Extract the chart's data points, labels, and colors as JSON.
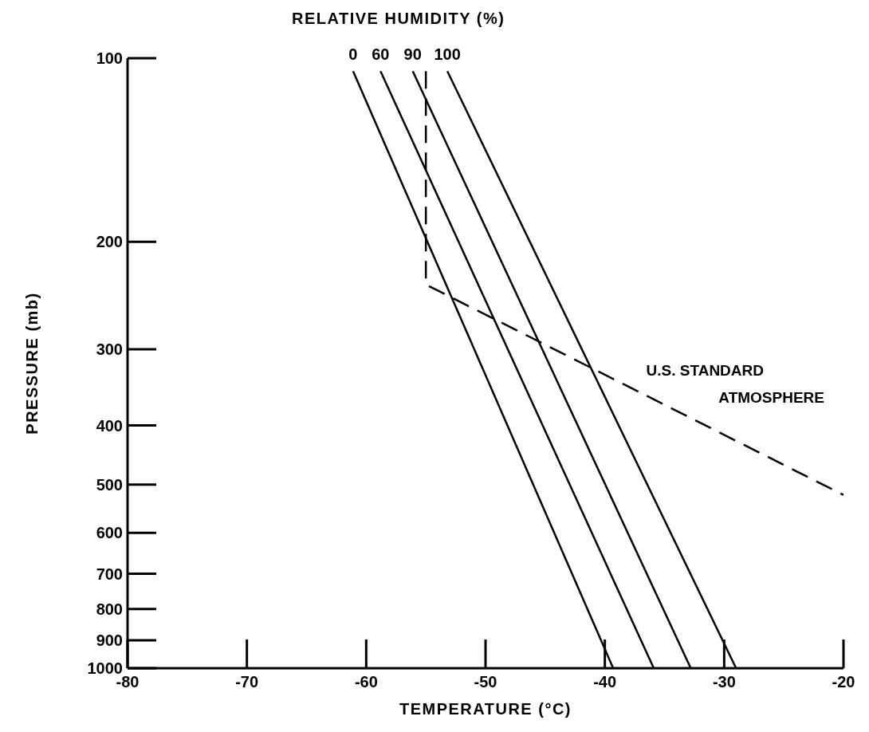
{
  "chart_data": {
    "type": "line",
    "legend_title": "RELATIVE HUMIDITY (%)",
    "xlabel": "TEMPERATURE (°C)",
    "ylabel": "PRESSURE (mb)",
    "xlim": [
      -80,
      -20
    ],
    "xticks": [
      -80,
      -70,
      -60,
      -50,
      -40,
      -30,
      -20
    ],
    "ylim": [
      1000,
      100
    ],
    "yticks": [
      100,
      200,
      300,
      400,
      500,
      600,
      700,
      800,
      900,
      1000
    ],
    "log": "y",
    "marker": "none",
    "line_style": "solid",
    "series": [
      {
        "name": "0",
        "color": "#000000",
        "x": [
          -61.1,
          -39.3
        ],
        "values": [
          105,
          1000
        ]
      },
      {
        "name": "60",
        "color": "#000000",
        "x": [
          -58.8,
          -35.9
        ],
        "values": [
          105,
          1000
        ]
      },
      {
        "name": "90",
        "color": "#000000",
        "x": [
          -56.1,
          -32.8
        ],
        "values": [
          105,
          1000
        ]
      },
      {
        "name": "100",
        "color": "#000000",
        "x": [
          -53.2,
          -29.0
        ],
        "values": [
          105,
          1000
        ]
      },
      {
        "name": "U.S. STANDARD ATMOSPHERE",
        "color": "#000000",
        "line_style": "dashed",
        "x": [
          -55,
          -55,
          -20
        ],
        "values": [
          105,
          235,
          520
        ]
      }
    ]
  }
}
